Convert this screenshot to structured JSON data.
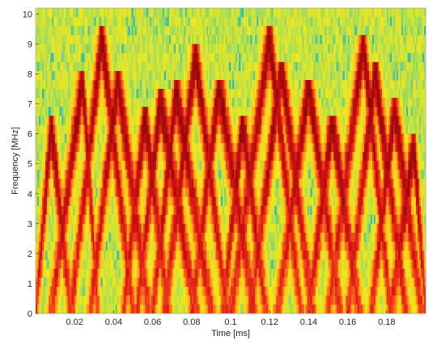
{
  "chart_data": {
    "type": "heatmap",
    "title": "",
    "xlabel": "Time [ms]",
    "ylabel": "Frequency [MHz]",
    "xlim": [
      0,
      0.2
    ],
    "ylim": [
      0,
      10.2
    ],
    "x_ticks": [
      "0.02",
      "0.04",
      "0.06",
      "0.08",
      "0.1",
      "0.12",
      "0.14",
      "0.16",
      "0.18"
    ],
    "x_tick_values": [
      0.02,
      0.04,
      0.06,
      0.08,
      0.1,
      0.12,
      0.14,
      0.16,
      0.18
    ],
    "y_ticks": [
      "0",
      "1",
      "2",
      "3",
      "4",
      "5",
      "6",
      "7",
      "8",
      "9",
      "10"
    ],
    "y_tick_values": [
      0,
      1,
      2,
      3,
      4,
      5,
      6,
      7,
      8,
      9,
      10
    ],
    "colormap": "jet-like (upper range: cyan, green, yellow, orange, red, dark red)",
    "colormap_stops": [
      "#17b3c9",
      "#6fcf7a",
      "#b8e04a",
      "#f2e81c",
      "#fdb515",
      "#f5421e",
      "#d01010",
      "#8c0a0a"
    ],
    "background_noise": "speckled yellow-green noise across the whole time-frequency plane",
    "signal": {
      "description": "repeating triangular frequency chirps (sawtooth ridges) of high intensity",
      "ridges": [
        {
          "t_start": 0.0,
          "t_peak": 0.008,
          "t_end": 0.018,
          "f_peak": 6.2
        },
        {
          "t_start": 0.008,
          "t_peak": 0.024,
          "t_end": 0.032,
          "f_peak": 7.8
        },
        {
          "t_start": 0.018,
          "t_peak": 0.034,
          "t_end": 0.05,
          "f_peak": 9.2
        },
        {
          "t_start": 0.028,
          "t_peak": 0.042,
          "t_end": 0.058,
          "f_peak": 7.8
        },
        {
          "t_start": 0.045,
          "t_peak": 0.056,
          "t_end": 0.068,
          "f_peak": 6.6
        },
        {
          "t_start": 0.052,
          "t_peak": 0.064,
          "t_end": 0.082,
          "f_peak": 7.1
        },
        {
          "t_start": 0.06,
          "t_peak": 0.072,
          "t_end": 0.09,
          "f_peak": 7.4
        },
        {
          "t_start": 0.066,
          "t_peak": 0.082,
          "t_end": 0.098,
          "f_peak": 8.6
        },
        {
          "t_start": 0.08,
          "t_peak": 0.094,
          "t_end": 0.112,
          "f_peak": 7.6
        },
        {
          "t_start": 0.096,
          "t_peak": 0.106,
          "t_end": 0.118,
          "f_peak": 6.4
        },
        {
          "t_start": 0.1,
          "t_peak": 0.12,
          "t_end": 0.136,
          "f_peak": 9.2
        },
        {
          "t_start": 0.11,
          "t_peak": 0.126,
          "t_end": 0.142,
          "f_peak": 8.2
        },
        {
          "t_start": 0.124,
          "t_peak": 0.14,
          "t_end": 0.156,
          "f_peak": 7.6
        },
        {
          "t_start": 0.14,
          "t_peak": 0.152,
          "t_end": 0.166,
          "f_peak": 6.4
        },
        {
          "t_start": 0.15,
          "t_peak": 0.168,
          "t_end": 0.182,
          "f_peak": 9.0
        },
        {
          "t_start": 0.16,
          "t_peak": 0.174,
          "t_end": 0.19,
          "f_peak": 8.0
        },
        {
          "t_start": 0.172,
          "t_peak": 0.184,
          "t_end": 0.198,
          "f_peak": 6.8
        },
        {
          "t_start": 0.182,
          "t_peak": 0.194,
          "t_end": 0.2,
          "f_peak": 5.6
        }
      ]
    },
    "grid": false,
    "legend": "none"
  }
}
